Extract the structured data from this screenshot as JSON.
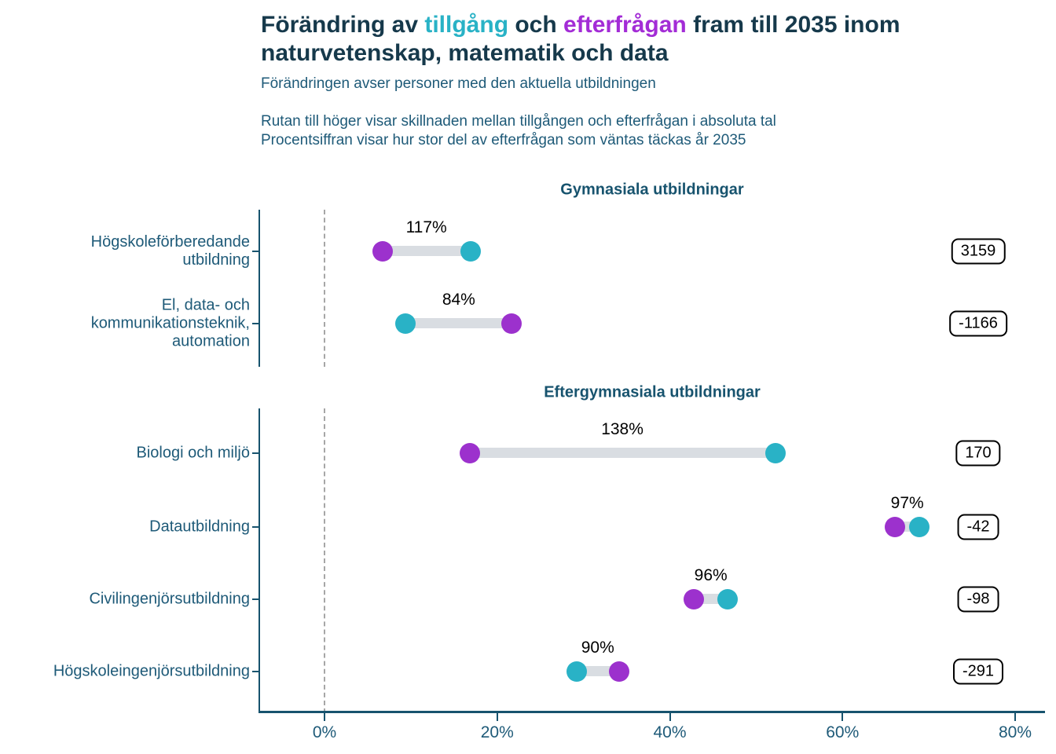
{
  "title": {
    "line1_prefix": "Förändring av ",
    "line1_supply_word": "tillgång",
    "line1_mid": " och ",
    "line1_demand_word": "efterfrågan",
    "line1_suffix": " fram till 2035 inom",
    "line2": "naturvetenskap, matematik och data"
  },
  "subtitle1": "Förändringen avser personer med den aktuella utbildningen",
  "subtitle2_line1": "Rutan till höger visar skillnaden mellan tillgången och efterfrågan i absoluta tal",
  "subtitle2_line2": "Procentsiffran visar hur stor del av efterfrågan som väntas täckas år 2035",
  "colors": {
    "supply": "#29b2c6",
    "demand": "#9c31cd",
    "demand_title": "#a32cd6",
    "connector": "#d9dde2",
    "axis": "#17536e",
    "label_text": "#1e5a78",
    "zero_line": "#a6a6a6",
    "ink": "#16394b"
  },
  "chart_data": {
    "type": "dumbbell",
    "title": "Förändring av tillgång och efterfrågan fram till 2035 inom naturvetenskap, matematik och data",
    "series": [
      {
        "name": "tillgång",
        "color": "#29b2c6"
      },
      {
        "name": "efterfrågan",
        "color": "#9c31cd"
      }
    ],
    "x_axis": {
      "unit": "%",
      "tick_values": [
        0,
        20,
        40,
        60,
        80
      ],
      "tick_labels": [
        "0%",
        "20%",
        "40%",
        "60%",
        "80%"
      ],
      "range": [
        -7.5,
        84
      ],
      "zero_reference_line": true
    },
    "sections": [
      {
        "header": "Gymnasiala utbildningar",
        "rows": [
          {
            "label": "Högskoleförberedande utbildning",
            "label_lines": [
              "Högskoleförberedande",
              "utbildning"
            ],
            "supply_pct": 16.9,
            "demand_pct": 6.7,
            "coverage_label": "117%",
            "balance": "3159"
          },
          {
            "label": "El, data- och kommunikationsteknik, automation",
            "label_lines": [
              "El, data- och",
              "kommunikationsteknik,",
              "automation"
            ],
            "supply_pct": 9.4,
            "demand_pct": 21.7,
            "coverage_label": "84%",
            "balance": "-1166"
          }
        ]
      },
      {
        "header": "Eftergymnasiala utbildningar",
        "rows": [
          {
            "label": "Biologi och miljö",
            "label_lines": [
              "Biologi och miljö"
            ],
            "supply_pct": 52.2,
            "demand_pct": 16.8,
            "coverage_label": "138%",
            "balance": "170"
          },
          {
            "label": "Datautbildning",
            "label_lines": [
              "Datautbildning"
            ],
            "supply_pct": 68.9,
            "demand_pct": 66.1,
            "coverage_label": "97%",
            "balance": "-42"
          },
          {
            "label": "Civilingenjörsutbildning",
            "label_lines": [
              "Civilingenjörsutbildning"
            ],
            "supply_pct": 46.7,
            "demand_pct": 42.8,
            "coverage_label": "96%",
            "balance": "-98"
          },
          {
            "label": "Högskoleingenjörsutbildning",
            "label_lines": [
              "Högskoleingenjörsutbildning"
            ],
            "supply_pct": 29.2,
            "demand_pct": 34.1,
            "coverage_label": "90%",
            "balance": "-291"
          }
        ]
      }
    ]
  }
}
